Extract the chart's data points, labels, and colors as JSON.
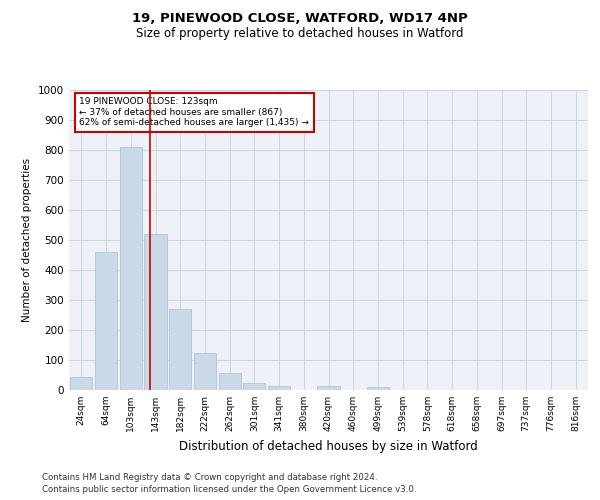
{
  "title1": "19, PINEWOOD CLOSE, WATFORD, WD17 4NP",
  "title2": "Size of property relative to detached houses in Watford",
  "xlabel": "Distribution of detached houses by size in Watford",
  "ylabel": "Number of detached properties",
  "footnote1": "Contains HM Land Registry data © Crown copyright and database right 2024.",
  "footnote2": "Contains public sector information licensed under the Open Government Licence v3.0.",
  "categories": [
    "24sqm",
    "64sqm",
    "103sqm",
    "143sqm",
    "182sqm",
    "222sqm",
    "262sqm",
    "301sqm",
    "341sqm",
    "380sqm",
    "420sqm",
    "460sqm",
    "499sqm",
    "539sqm",
    "578sqm",
    "618sqm",
    "658sqm",
    "697sqm",
    "737sqm",
    "776sqm",
    "816sqm"
  ],
  "values": [
    42,
    460,
    810,
    520,
    270,
    125,
    58,
    22,
    12,
    0,
    12,
    0,
    10,
    0,
    0,
    0,
    0,
    0,
    0,
    0,
    0
  ],
  "bar_color": "#c9d9e8",
  "bar_edge_color": "#a8bece",
  "ylim": [
    0,
    1000
  ],
  "yticks": [
    0,
    100,
    200,
    300,
    400,
    500,
    600,
    700,
    800,
    900,
    1000
  ],
  "property_line_x": 2.77,
  "annotation_text1": "19 PINEWOOD CLOSE: 123sqm",
  "annotation_text2": "← 37% of detached houses are smaller (867)",
  "annotation_text3": "62% of semi-detached houses are larger (1,435) →",
  "annotation_box_color": "#ffffff",
  "annotation_box_edge_color": "#cc0000",
  "vline_color": "#cc0000",
  "grid_color": "#ccd6e0",
  "bg_color": "#eef2f8"
}
